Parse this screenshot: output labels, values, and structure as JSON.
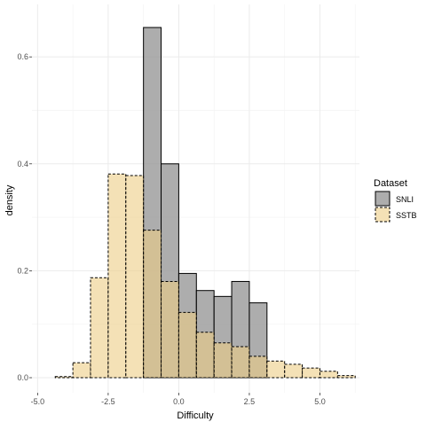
{
  "chart_data": {
    "type": "histogram",
    "xlabel": "Difficulty",
    "ylabel": "density",
    "xlim": [
      -5.2,
      6.4
    ],
    "ylim": [
      0,
      0.66
    ],
    "x_ticks": [
      -5.0,
      -2.5,
      0.0,
      2.5,
      5.0
    ],
    "x_tick_labels": [
      "-5.0",
      "-2.5",
      "0.0",
      "2.5",
      "5.0"
    ],
    "y_ticks": [
      0.0,
      0.2,
      0.4,
      0.6
    ],
    "y_tick_labels": [
      "0.0",
      "0.2",
      "0.4",
      "0.6"
    ],
    "grid": true,
    "legend": {
      "title": "Dataset",
      "position": "right"
    },
    "series": [
      {
        "name": "SNLI",
        "fill": "#999999",
        "fill_opacity": 0.8,
        "stroke": "#000000",
        "stroke_style": "solid",
        "bins": [
          {
            "x0": -4.375,
            "x1": -3.75,
            "y": 0.0
          },
          {
            "x0": -3.75,
            "x1": -3.125,
            "y": 0.0
          },
          {
            "x0": -3.125,
            "x1": -2.5,
            "y": 0.0
          },
          {
            "x0": -2.5,
            "x1": -1.875,
            "y": 0.0
          },
          {
            "x0": -1.875,
            "x1": -1.25,
            "y": 0.0
          },
          {
            "x0": -1.25,
            "x1": -0.625,
            "y": 0.655
          },
          {
            "x0": -0.625,
            "x1": 0.0,
            "y": 0.4
          },
          {
            "x0": 0.0,
            "x1": 0.625,
            "y": 0.195
          },
          {
            "x0": 0.625,
            "x1": 1.25,
            "y": 0.163
          },
          {
            "x0": 1.25,
            "x1": 1.875,
            "y": 0.152
          },
          {
            "x0": 1.875,
            "x1": 2.5,
            "y": 0.18
          },
          {
            "x0": 2.5,
            "x1": 3.125,
            "y": 0.14
          },
          {
            "x0": 3.125,
            "x1": 3.75,
            "y": 0.0
          },
          {
            "x0": 3.75,
            "x1": 4.375,
            "y": 0.0
          },
          {
            "x0": 4.375,
            "x1": 5.0,
            "y": 0.0
          },
          {
            "x0": 5.0,
            "x1": 5.625,
            "y": 0.0
          },
          {
            "x0": 5.625,
            "x1": 6.25,
            "y": 0.0
          }
        ]
      },
      {
        "name": "SSTB",
        "fill": "#ECCD85",
        "fill_opacity": 0.6,
        "stroke": "#000000",
        "stroke_style": "dashed",
        "bins": [
          {
            "x0": -4.375,
            "x1": -3.75,
            "y": 0.002
          },
          {
            "x0": -3.75,
            "x1": -3.125,
            "y": 0.028
          },
          {
            "x0": -3.125,
            "x1": -2.5,
            "y": 0.187
          },
          {
            "x0": -2.5,
            "x1": -1.875,
            "y": 0.381
          },
          {
            "x0": -1.875,
            "x1": -1.25,
            "y": 0.378
          },
          {
            "x0": -1.25,
            "x1": -0.625,
            "y": 0.276
          },
          {
            "x0": -0.625,
            "x1": 0.0,
            "y": 0.18
          },
          {
            "x0": 0.0,
            "x1": 0.625,
            "y": 0.122
          },
          {
            "x0": 0.625,
            "x1": 1.25,
            "y": 0.085
          },
          {
            "x0": 1.25,
            "x1": 1.875,
            "y": 0.065
          },
          {
            "x0": 1.875,
            "x1": 2.5,
            "y": 0.058
          },
          {
            "x0": 2.5,
            "x1": 3.125,
            "y": 0.04
          },
          {
            "x0": 3.125,
            "x1": 3.75,
            "y": 0.031
          },
          {
            "x0": 3.75,
            "x1": 4.375,
            "y": 0.025
          },
          {
            "x0": 4.375,
            "x1": 5.0,
            "y": 0.018
          },
          {
            "x0": 5.0,
            "x1": 5.625,
            "y": 0.012
          },
          {
            "x0": 5.625,
            "x1": 6.25,
            "y": 0.004
          }
        ]
      }
    ]
  }
}
